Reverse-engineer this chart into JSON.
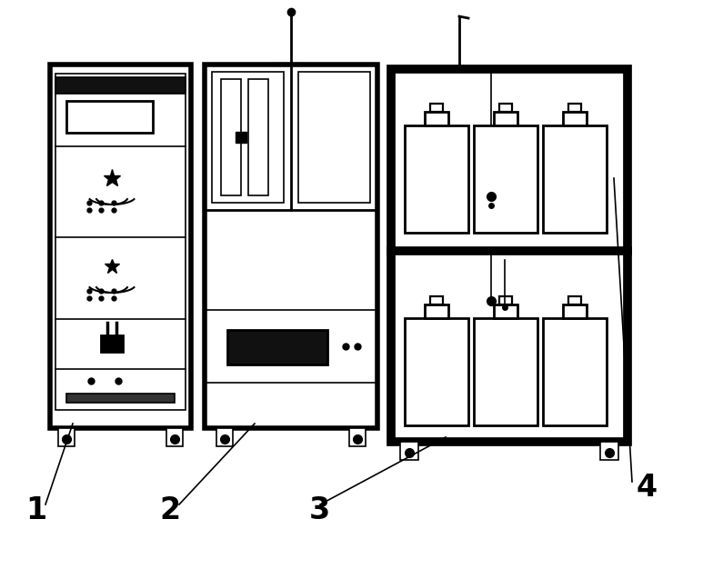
{
  "bg_color": "#ffffff",
  "line_color": "#000000",
  "fig_width": 7.95,
  "fig_height": 6.26,
  "labels": [
    "1",
    "2",
    "3",
    "4"
  ],
  "label_fontsize": 24,
  "label_fontweight": "bold",
  "lw_thick": 4.0,
  "lw_med": 2.0,
  "lw_thin": 1.2,
  "lw_frame": 7.0
}
